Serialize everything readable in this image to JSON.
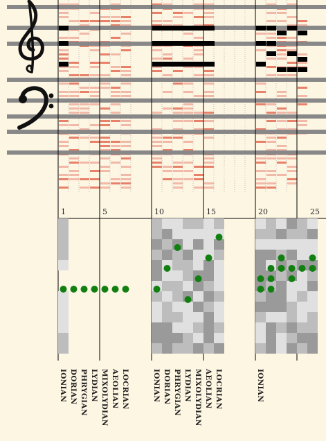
{
  "clefs": {
    "treble": "treble-clef-icon",
    "bass": "bass-clef-icon"
  },
  "colors": {
    "background": "#fdf6e3",
    "staff_line": "#888888",
    "note_on": "#000000",
    "note_light": "#f2b8a8",
    "note_medium": "#e8816a",
    "bar_line": "#000000",
    "heat_dark": "#9a9a9a",
    "heat_mid": "#bdbdbd",
    "heat_light": "#e0e0e0",
    "dot": "#118011"
  },
  "measure_numbers": [
    "1",
    "5",
    "10",
    "15",
    "20",
    "25"
  ],
  "mode_labels": [
    {
      "col": 1,
      "text": "IONIAN"
    },
    {
      "col": 2,
      "text": "DORIAN"
    },
    {
      "col": 3,
      "text": "PHRYGIAN"
    },
    {
      "col": 4,
      "text": "LYDIAN"
    },
    {
      "col": 5,
      "text": "MIXOLYDIAN"
    },
    {
      "col": 6,
      "text": "AEOLIAN"
    },
    {
      "col": 7,
      "text": "LOCRIAN"
    },
    {
      "col": 10,
      "text": "IONIAN"
    },
    {
      "col": 11,
      "text": "DORIAN"
    },
    {
      "col": 12,
      "text": "PHRYGIAN"
    },
    {
      "col": 13,
      "text": "LYDIAN"
    },
    {
      "col": 14,
      "text": "MIXOLYDIAN"
    },
    {
      "col": 15,
      "text": "AEOLIAN"
    },
    {
      "col": 16,
      "text": "LOCRIAN"
    },
    {
      "col": 20,
      "text": "IONIAN"
    }
  ],
  "selected_modes": [
    {
      "col": 1,
      "level": 7
    },
    {
      "col": 2,
      "level": 7
    },
    {
      "col": 3,
      "level": 7
    },
    {
      "col": 4,
      "level": 7
    },
    {
      "col": 5,
      "level": 7
    },
    {
      "col": 6,
      "level": 7
    },
    {
      "col": 7,
      "level": 7
    },
    {
      "col": 10,
      "level": 7
    },
    {
      "col": 11,
      "level": 5
    },
    {
      "col": 12,
      "level": 3
    },
    {
      "col": 13,
      "level": 8
    },
    {
      "col": 14,
      "level": 6
    },
    {
      "col": 15,
      "level": 4
    },
    {
      "col": 16,
      "level": 2
    },
    {
      "col": 20,
      "level": 7
    },
    {
      "col": 20,
      "level": 6
    },
    {
      "col": 21,
      "level": 7
    },
    {
      "col": 21,
      "level": 6
    },
    {
      "col": 21,
      "level": 5
    },
    {
      "col": 22,
      "level": 5
    },
    {
      "col": 22,
      "level": 4
    },
    {
      "col": 23,
      "level": 6
    },
    {
      "col": 23,
      "level": 5
    },
    {
      "col": 24,
      "level": 5
    },
    {
      "col": 25,
      "level": 5
    },
    {
      "col": 25,
      "level": 4
    }
  ]
}
